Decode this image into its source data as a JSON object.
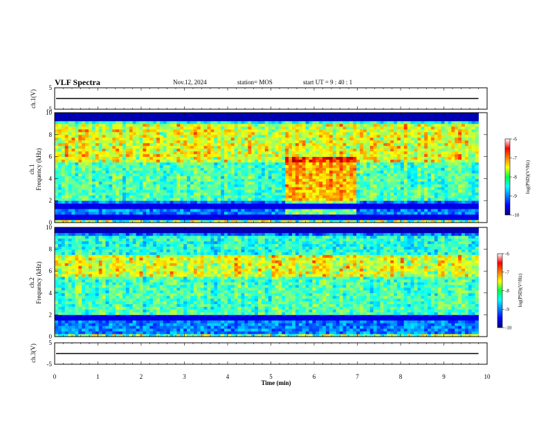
{
  "header": {
    "title": "VLF Spectra",
    "date": "Nov.12, 2024",
    "station": "station= MOS",
    "start": "start  UT  =   9 : 40 : 1"
  },
  "chart_data": {
    "type": "heatmap",
    "xlabel": "Time  (min)",
    "xlim": [
      0,
      10
    ],
    "x_ticks": [
      "0",
      "1",
      "2",
      "3",
      "4",
      "5",
      "6",
      "7",
      "8",
      "9",
      "10"
    ],
    "data_end_min": 9.8,
    "panels": [
      {
        "id": "ch1_waveform",
        "kind": "line",
        "ylabel": "ch.1(V)",
        "ylim": [
          -5,
          5
        ],
        "y_ticks": [
          "5",
          "-5"
        ],
        "level": 0
      },
      {
        "id": "ch1_spectrogram",
        "kind": "heatmap",
        "ylabel_top": "ch.1",
        "ylabel": "Frequency  (kHz)",
        "ylim": [
          0,
          10
        ],
        "y_ticks": [
          "0",
          "2",
          "4",
          "6",
          "8",
          "10"
        ],
        "colorbar": {
          "label": "log(PSD)(V²/Hz)",
          "range": [
            -10,
            -6
          ],
          "ticks": [
            "-6",
            "-7",
            "-8",
            "-9",
            "-10"
          ]
        },
        "features": {
          "noise_bands_khz": [
            0.5,
            1.5,
            9.5
          ],
          "intense_band_khz": [
            5.5,
            9.0
          ],
          "broadband_burst_min": [
            5.3,
            7.0
          ]
        }
      },
      {
        "id": "ch2_spectrogram",
        "kind": "heatmap",
        "ylabel_top": "ch.2",
        "ylabel": "Frequency  (kHz)",
        "ylim": [
          0,
          10
        ],
        "y_ticks": [
          "0",
          "2",
          "4",
          "6",
          "8",
          "10"
        ],
        "colorbar": {
          "label": "log(PSD)(V²/Hz)",
          "range": [
            -10,
            -6
          ],
          "ticks": [
            "-6",
            "-7",
            "-8",
            "-9",
            "-10"
          ]
        },
        "features": {
          "noise_bands_khz": [
            1.8
          ],
          "intense_band_khz": [
            5.5,
            7.5
          ]
        }
      },
      {
        "id": "ch3_waveform",
        "kind": "line",
        "ylabel": "ch.3(V)",
        "ylim": [
          -5,
          5
        ],
        "y_ticks": [
          "5",
          "-5"
        ],
        "level": 0
      }
    ]
  }
}
